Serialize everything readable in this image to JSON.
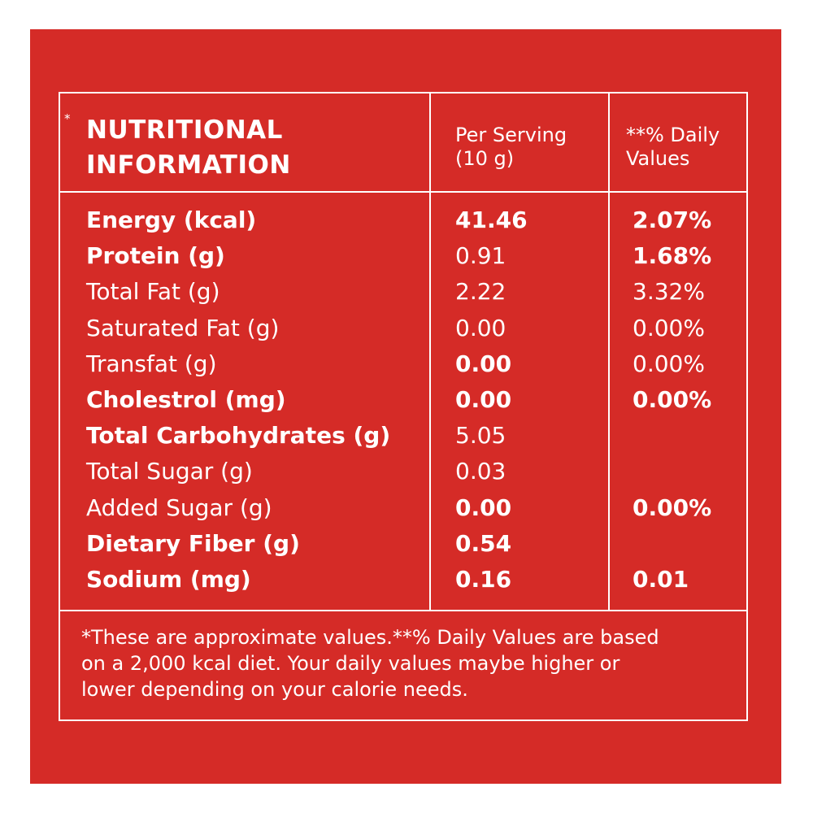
{
  "colors": {
    "background": "#d52b27",
    "text": "#ffffff"
  },
  "header": {
    "star": "*",
    "title_line1": "NUTRITIONAL",
    "title_line2": "INFORMATION",
    "per_serving_line1": "Per Serving",
    "per_serving_line2": "(10 g)",
    "daily_line1": "**% Daily",
    "daily_line2": "Values"
  },
  "rows": [
    {
      "label": "Energy (kcal)",
      "serving": "41.46",
      "daily": "2.07%",
      "label_bold": true,
      "serving_bold": true,
      "daily_bold": true
    },
    {
      "label": "Protein (g)",
      "serving": "0.91",
      "daily": "1.68%",
      "label_bold": true,
      "serving_bold": false,
      "daily_bold": true
    },
    {
      "label": "Total Fat (g)",
      "serving": "2.22",
      "daily": "3.32%",
      "label_bold": false,
      "serving_bold": false,
      "daily_bold": false
    },
    {
      "label": "Saturated Fat (g)",
      "serving": "0.00",
      "daily": "0.00%",
      "label_bold": false,
      "serving_bold": false,
      "daily_bold": false
    },
    {
      "label": "Transfat (g)",
      "serving": "0.00",
      "daily": "0.00%",
      "label_bold": false,
      "serving_bold": true,
      "daily_bold": false
    },
    {
      "label": "Cholestrol (mg)",
      "serving": "0.00",
      "daily": "0.00%",
      "label_bold": true,
      "serving_bold": true,
      "daily_bold": true
    },
    {
      "label": "Total Carbohydrates (g)",
      "serving": "5.05",
      "daily": "",
      "label_bold": true,
      "serving_bold": false,
      "daily_bold": false
    },
    {
      "label": "Total Sugar (g)",
      "serving": "0.03",
      "daily": "",
      "label_bold": false,
      "serving_bold": false,
      "daily_bold": false
    },
    {
      "label": "Added Sugar (g)",
      "serving": "0.00",
      "daily": "0.00%",
      "label_bold": false,
      "serving_bold": true,
      "daily_bold": true
    },
    {
      "label": "Dietary Fiber (g)",
      "serving": "0.54",
      "daily": "",
      "label_bold": true,
      "serving_bold": true,
      "daily_bold": false
    },
    {
      "label": "Sodium (mg)",
      "serving": "0.16",
      "daily": "0.01",
      "label_bold": true,
      "serving_bold": true,
      "daily_bold": true
    }
  ],
  "footnote": {
    "line1": "*These are approximate values.**% Daily Values are based",
    "line2": "on a 2,000 kcal diet. Your daily values maybe higher or",
    "line3": "lower depending on your calorie needs."
  }
}
